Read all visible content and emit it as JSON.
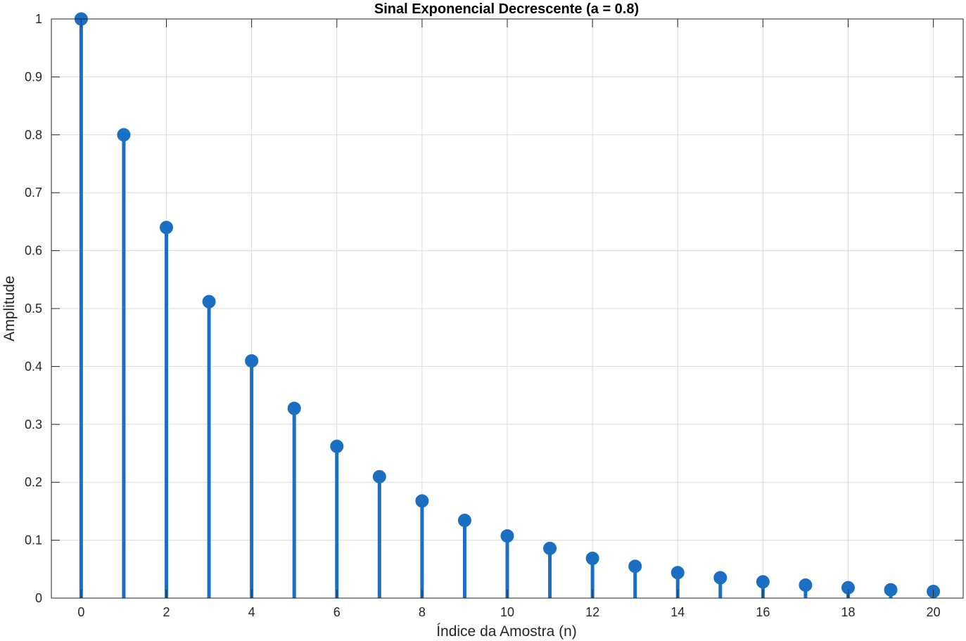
{
  "chart_data": {
    "type": "stem",
    "title": "Sinal Exponencial Decrescente (a = 0.8)",
    "xlabel": "Índice da Amostra (n)",
    "ylabel": "Amplitude",
    "xlim": [
      -0.7,
      20.7
    ],
    "ylim": [
      0,
      1
    ],
    "grid": true,
    "x": [
      0,
      1,
      2,
      3,
      4,
      5,
      6,
      7,
      8,
      9,
      10,
      11,
      12,
      13,
      14,
      15,
      16,
      17,
      18,
      19,
      20
    ],
    "values": [
      1.0,
      0.8,
      0.64,
      0.512,
      0.4096,
      0.32768,
      0.262144,
      0.209715,
      0.167772,
      0.134218,
      0.107374,
      0.085899,
      0.068719,
      0.054976,
      0.04398,
      0.035184,
      0.028147,
      0.022518,
      0.018014,
      0.014412,
      0.011529
    ],
    "xticks": [
      0,
      2,
      4,
      6,
      8,
      10,
      12,
      14,
      16,
      18,
      20
    ],
    "xtick_labels": [
      "0",
      "2",
      "4",
      "6",
      "8",
      "10",
      "12",
      "14",
      "16",
      "18",
      "20"
    ],
    "yticks": [
      0,
      0.1,
      0.2,
      0.3,
      0.4,
      0.5,
      0.6,
      0.7,
      0.8,
      0.9,
      1
    ],
    "ytick_labels": [
      "0",
      "0.1",
      "0.2",
      "0.3",
      "0.4",
      "0.5",
      "0.6",
      "0.7",
      "0.8",
      "0.9",
      "1"
    ],
    "colors": {
      "stem": "#1b6fc2",
      "grid": "#dcdcdc",
      "axis": "#262626"
    }
  }
}
